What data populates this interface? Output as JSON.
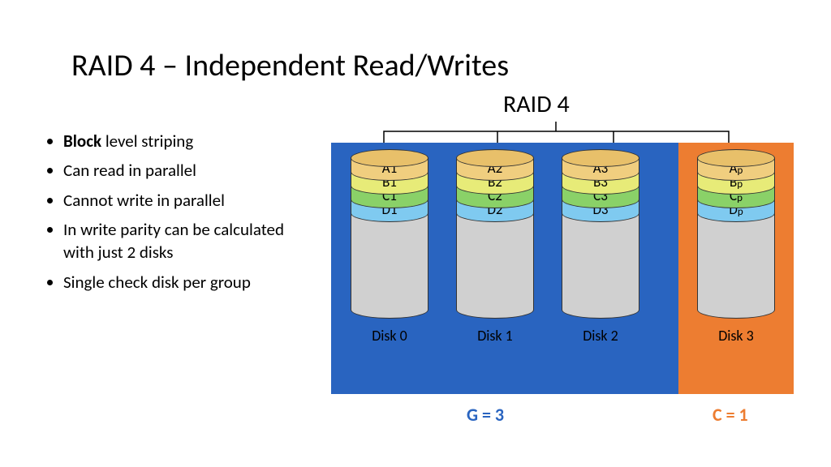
{
  "title": "RAID 4 – Independent Read/Writes",
  "bullets": {
    "b0_bold": "Block",
    "b0_rest": " level striping",
    "b1": "Can read in parallel",
    "b2": "Cannot write in parallel",
    "b3": "In write parity can be calculated with just 2 disks",
    "b4": "Single check disk per group"
  },
  "diagram": {
    "title": "RAID 4",
    "zone_data_bg": "#2964c0",
    "zone_parity_bg": "#ed7d31",
    "body_fill": "#d0d0d0",
    "border": "#333333",
    "colors": {
      "top": "#e8c06a",
      "A": "#f0ce7f",
      "B": "#e7eb78",
      "C": "#8ad168",
      "D": "#7fcaf0"
    },
    "disks": [
      {
        "label": "Disk 0",
        "parity": false,
        "blocks": [
          "A1",
          "B1",
          "C1",
          "D1"
        ]
      },
      {
        "label": "Disk 1",
        "parity": false,
        "blocks": [
          "A2",
          "B2",
          "C2",
          "D2"
        ]
      },
      {
        "label": "Disk 2",
        "parity": false,
        "blocks": [
          "A3",
          "B3",
          "C3",
          "D3"
        ]
      },
      {
        "label": "Disk 3",
        "parity": true,
        "blocks": [
          "Ap",
          "Bp",
          "Cp",
          "Dp"
        ]
      }
    ],
    "footer_g": {
      "text": "G = 3",
      "color": "#2964c0"
    },
    "footer_c": {
      "text": "C = 1",
      "color": "#ed7d31"
    }
  }
}
